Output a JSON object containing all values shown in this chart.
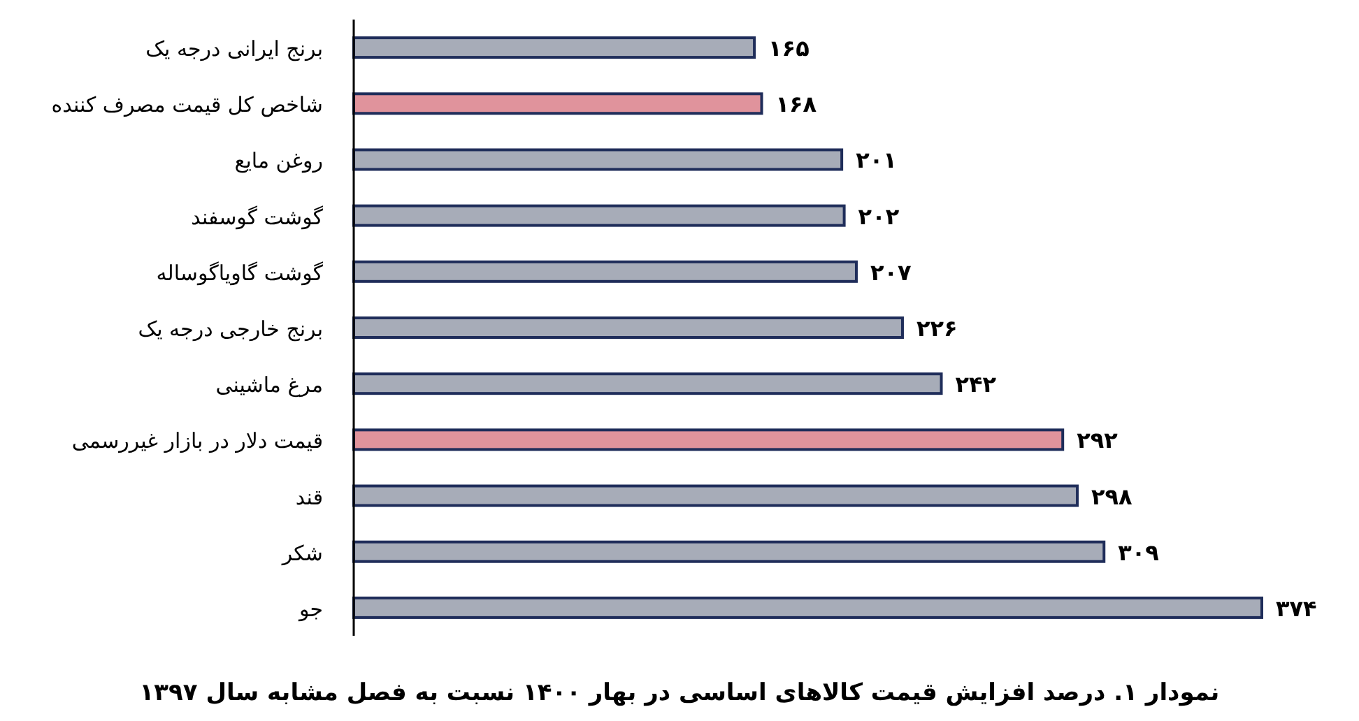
{
  "chart_data": {
    "type": "bar",
    "orientation": "horizontal",
    "title": "نمودار ۱. درصد افزایش قیمت کالاهای اساسی در بهار ۱۴۰۰ نسبت به فصل مشابه سال ۱۳۹۷",
    "categories": [
      "برنج ایرانی درجه یک",
      "شاخص کل قیمت مصرف کننده",
      "روغن مایع",
      "گوشت گوسفند",
      "گوشت گاویاگوساله",
      "برنج خارجی درجه یک",
      "مرغ ماشینی",
      "قیمت دلار در بازار غیررسمی",
      "قند",
      "شکر",
      "جو"
    ],
    "values": [
      165,
      168,
      201,
      202,
      207,
      226,
      242,
      292,
      298,
      309,
      374
    ],
    "value_labels": [
      "۱۶۵",
      "۱۶۸",
      "۲۰۱",
      "۲۰۲",
      "۲۰۷",
      "۲۲۶",
      "۲۴۲",
      "۲۹۲",
      "۲۹۸",
      "۳۰۹",
      "۳۷۴"
    ],
    "colors": [
      "#a7acb8",
      "#e0939c",
      "#a7acb8",
      "#a7acb8",
      "#a7acb8",
      "#a7acb8",
      "#a7acb8",
      "#e0939c",
      "#a7acb8",
      "#a7acb8",
      "#a7acb8"
    ],
    "grid": false
  }
}
